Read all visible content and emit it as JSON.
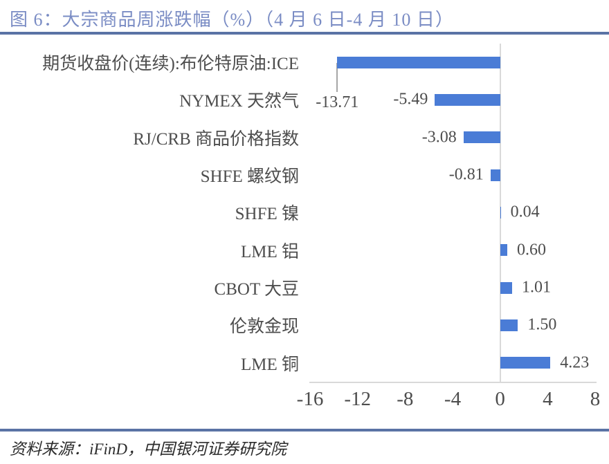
{
  "header": {
    "title": "图 6：大宗商品周涨跌幅（%）（4 月 6 日-4 月 10 日）"
  },
  "footer": {
    "source": "资料来源：iFinD，中国银河证券研究院"
  },
  "colors": {
    "bar": "#4a7cd6",
    "title_text": "#7a8cc4",
    "rule": "#5a73a5",
    "axis_line": "#d9d9d9",
    "label_text": "#4d4d4d",
    "leader_line": "#a6a6a6"
  },
  "chart_data": {
    "type": "bar",
    "orientation": "horizontal",
    "title": "大宗商品周涨跌幅（%）（4 月 6 日-4 月 10 日）",
    "categories": [
      "期货收盘价(连续):布伦特原油:ICE",
      "NYMEX 天然气",
      "RJ/CRB 商品价格指数",
      "SHFE 螺纹钢",
      "SHFE 镍",
      "LME 铝",
      "CBOT 大豆",
      "伦敦金现",
      "LME 铜"
    ],
    "values": [
      -13.71,
      -5.49,
      -3.08,
      -0.81,
      0.04,
      0.6,
      1.01,
      1.5,
      4.23
    ],
    "labels": [
      "-13.71",
      "-5.49",
      "-3.08",
      "-0.81",
      "0.04",
      "0.60",
      "1.01",
      "1.50",
      "4.23"
    ],
    "x_ticks": [
      "-16",
      "-12",
      "-8",
      "-4",
      "0",
      "4",
      "8"
    ],
    "xlim": [
      -16,
      8
    ],
    "xlabel": "",
    "ylabel": "",
    "grid": false,
    "legend": "none",
    "data_label_position": "outside-end"
  }
}
